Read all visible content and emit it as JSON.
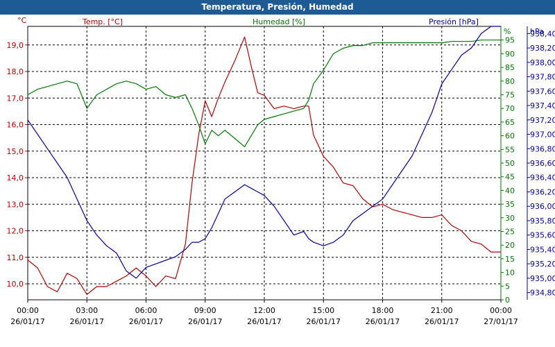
{
  "window": {
    "title": "Temperatura, Presión, Humedad"
  },
  "chart_data": {
    "type": "line",
    "title": "Temperatura, Presión, Humedad",
    "x_ticks": [
      {
        "time": "00:00",
        "date": "26/01/17"
      },
      {
        "time": "03:00",
        "date": "26/01/17"
      },
      {
        "time": "06:00",
        "date": "26/01/17"
      },
      {
        "time": "09:00",
        "date": "26/01/17"
      },
      {
        "time": "12:00",
        "date": "26/01/17"
      },
      {
        "time": "15:00",
        "date": "26/01/17"
      },
      {
        "time": "18:00",
        "date": "26/01/17"
      },
      {
        "time": "21:00",
        "date": "26/01/17"
      },
      {
        "time": "00:00",
        "date": "27/01/17"
      }
    ],
    "xlim": [
      "26/01/17 00:00",
      "27/01/17 00:00"
    ],
    "grid": true,
    "axes": {
      "temp": {
        "unit": "°C",
        "ylim": [
          9.4,
          19.7
        ],
        "ticks": [
          "10,0",
          "11,0",
          "12,0",
          "13,0",
          "14,0",
          "15,0",
          "16,0",
          "17,0",
          "18,0",
          "19,0"
        ]
      },
      "hum": {
        "unit": "%",
        "ylim": [
          0,
          100
        ],
        "ticks": [
          "0",
          "5",
          "10",
          "15",
          "20",
          "25",
          "30",
          "35",
          "40",
          "45",
          "50",
          "55",
          "60",
          "65",
          "70",
          "75",
          "80",
          "85",
          "90",
          "95"
        ]
      },
      "pres": {
        "unit": "hPa",
        "ylim": [
          934.7,
          938.5
        ],
        "ticks": [
          "934,80",
          "935,00",
          "935,20",
          "935,40",
          "935,60",
          "935,80",
          "936,00",
          "936,20",
          "936,40",
          "936,60",
          "936,80",
          "937,00",
          "937,20",
          "937,40",
          "937,60",
          "937,80",
          "938,00",
          "938,20",
          "938,40"
        ]
      }
    },
    "series": [
      {
        "name": "Temp. [°C]",
        "axis": "temp",
        "color": "#b40000",
        "x": [
          "00:00",
          "00:30",
          "01:00",
          "01:30",
          "02:00",
          "02:30",
          "03:00",
          "03:30",
          "04:00",
          "04:30",
          "05:00",
          "05:30",
          "06:00",
          "06:30",
          "07:00",
          "07:30",
          "08:00",
          "08:20",
          "08:40",
          "09:00",
          "09:20",
          "09:40",
          "10:00",
          "10:30",
          "11:00",
          "11:20",
          "11:40",
          "12:00",
          "12:30",
          "13:00",
          "13:30",
          "14:00",
          "14:15",
          "14:30",
          "15:00",
          "15:30",
          "16:00",
          "16:30",
          "17:00",
          "17:30",
          "18:00",
          "18:30",
          "19:00",
          "19:30",
          "20:00",
          "20:30",
          "21:00",
          "21:30",
          "22:00",
          "22:30",
          "23:00",
          "23:30",
          "24:00"
        ],
        "y": [
          10.9,
          10.6,
          9.9,
          9.7,
          10.4,
          10.2,
          9.6,
          9.9,
          9.9,
          10.1,
          10.3,
          10.6,
          10.3,
          9.9,
          10.3,
          10.2,
          11.5,
          13.8,
          15.6,
          16.9,
          16.3,
          17.0,
          17.6,
          18.4,
          19.3,
          18.2,
          17.2,
          17.1,
          16.6,
          16.7,
          16.6,
          16.7,
          16.7,
          15.6,
          14.8,
          14.4,
          13.8,
          13.7,
          13.2,
          12.9,
          13.0,
          12.8,
          12.7,
          12.6,
          12.5,
          12.5,
          12.6,
          12.2,
          12.0,
          11.6,
          11.5,
          11.2,
          11.2
        ]
      },
      {
        "name": "Humedad [%]",
        "axis": "hum",
        "color": "#007800",
        "x": [
          "00:00",
          "00:30",
          "01:00",
          "01:30",
          "02:00",
          "02:30",
          "03:00",
          "03:30",
          "04:00",
          "04:30",
          "05:00",
          "05:30",
          "06:00",
          "06:30",
          "07:00",
          "07:30",
          "08:00",
          "08:20",
          "08:40",
          "09:00",
          "09:20",
          "09:40",
          "10:00",
          "10:30",
          "11:00",
          "11:20",
          "11:40",
          "12:00",
          "12:30",
          "13:00",
          "13:30",
          "14:00",
          "14:15",
          "14:30",
          "15:00",
          "15:30",
          "16:00",
          "16:30",
          "17:00",
          "17:30",
          "18:00",
          "18:30",
          "19:00",
          "19:30",
          "20:00",
          "20:30",
          "21:00",
          "21:30",
          "22:00",
          "22:30",
          "23:00",
          "23:30",
          "24:00"
        ],
        "y": [
          75,
          77,
          78,
          79,
          80,
          79,
          70,
          75,
          77,
          79,
          80,
          79,
          77,
          78,
          75,
          74,
          75,
          70,
          64,
          57,
          62,
          60,
          62,
          59,
          56,
          60,
          64,
          66,
          67,
          68,
          69,
          70,
          73,
          79,
          84,
          90,
          92,
          93,
          93,
          94,
          94,
          94,
          94,
          94,
          94,
          94,
          94,
          94.5,
          94.5,
          94.5,
          95,
          95,
          95
        ]
      },
      {
        "name": "Presión [hPa]",
        "axis": "pres",
        "color": "#0000a0",
        "x": [
          "00:00",
          "00:30",
          "01:00",
          "01:30",
          "02:00",
          "02:30",
          "03:00",
          "03:30",
          "04:00",
          "04:30",
          "05:00",
          "05:30",
          "06:00",
          "06:30",
          "07:00",
          "07:30",
          "08:00",
          "08:20",
          "08:40",
          "09:00",
          "09:20",
          "09:40",
          "10:00",
          "10:30",
          "11:00",
          "11:20",
          "11:40",
          "12:00",
          "12:30",
          "13:00",
          "13:30",
          "14:00",
          "14:15",
          "14:30",
          "15:00",
          "15:30",
          "16:00",
          "16:30",
          "17:00",
          "17:30",
          "18:00",
          "18:30",
          "19:00",
          "19:30",
          "20:00",
          "20:30",
          "21:00",
          "21:30",
          "22:00",
          "22:30",
          "23:00",
          "23:30",
          "24:00"
        ],
        "y": [
          937.2,
          937.0,
          936.8,
          936.6,
          936.4,
          936.1,
          935.8,
          935.6,
          935.45,
          935.35,
          935.1,
          935.0,
          935.15,
          935.2,
          935.25,
          935.3,
          935.4,
          935.5,
          935.5,
          935.55,
          935.7,
          935.9,
          936.1,
          936.2,
          936.3,
          936.25,
          936.2,
          936.15,
          936.0,
          935.8,
          935.6,
          935.65,
          935.55,
          935.5,
          935.45,
          935.5,
          935.6,
          935.8,
          935.9,
          936.0,
          936.1,
          936.3,
          936.5,
          936.7,
          937.0,
          937.3,
          937.7,
          937.9,
          938.1,
          938.2,
          938.4,
          938.5,
          938.5
        ]
      }
    ]
  }
}
